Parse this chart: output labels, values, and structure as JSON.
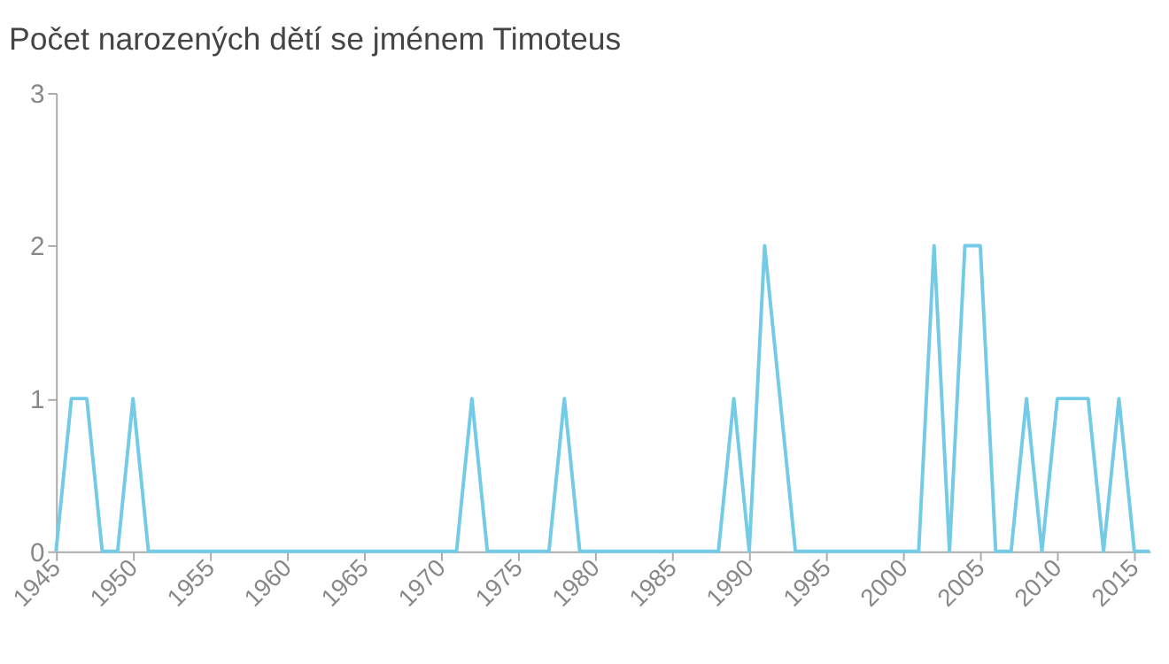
{
  "chart_data": {
    "type": "line",
    "title": "Počet narozených dětí se jménem Timoteus",
    "x": [
      1945,
      1946,
      1947,
      1948,
      1949,
      1950,
      1951,
      1952,
      1953,
      1954,
      1955,
      1956,
      1957,
      1958,
      1959,
      1960,
      1961,
      1962,
      1963,
      1964,
      1965,
      1966,
      1967,
      1968,
      1969,
      1970,
      1971,
      1972,
      1973,
      1974,
      1975,
      1976,
      1977,
      1978,
      1979,
      1980,
      1981,
      1982,
      1983,
      1984,
      1985,
      1986,
      1987,
      1988,
      1989,
      1990,
      1991,
      1992,
      1993,
      1994,
      1995,
      1996,
      1997,
      1998,
      1999,
      2000,
      2001,
      2002,
      2003,
      2004,
      2005,
      2006,
      2007,
      2008,
      2009,
      2010,
      2011,
      2012,
      2013,
      2014,
      2015,
      2016
    ],
    "series": [
      {
        "color": "#74cbe8",
        "values": [
          0,
          1,
          1,
          0,
          0,
          1,
          0,
          0,
          0,
          0,
          0,
          0,
          0,
          0,
          0,
          0,
          0,
          0,
          0,
          0,
          0,
          0,
          0,
          0,
          0,
          0,
          0,
          1,
          0,
          0,
          0,
          0,
          0,
          1,
          0,
          0,
          0,
          0,
          0,
          0,
          0,
          0,
          0,
          0,
          1,
          0,
          2,
          1,
          0,
          0,
          0,
          0,
          0,
          0,
          0,
          0,
          0,
          2,
          0,
          2,
          2,
          0,
          0,
          1,
          0,
          1,
          1,
          1,
          0,
          1,
          0,
          0
        ]
      }
    ],
    "xlim": [
      1945,
      2016
    ],
    "xticks": [
      1945,
      1950,
      1955,
      1960,
      1965,
      1970,
      1975,
      1980,
      1985,
      1990,
      1995,
      2000,
      2005,
      2010,
      2015
    ],
    "ylim": [
      0,
      3
    ],
    "yticks": [
      0,
      1,
      2,
      3
    ],
    "grid": false,
    "marker": "none",
    "line_style": "solid"
  }
}
